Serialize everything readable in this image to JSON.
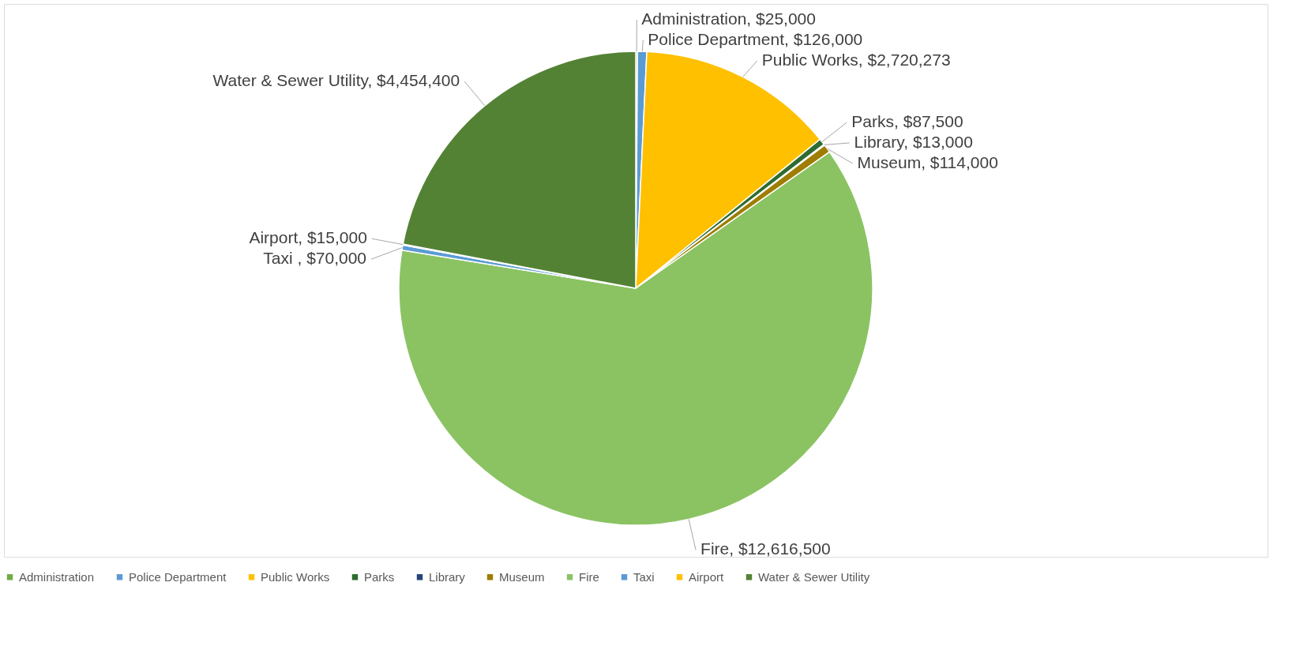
{
  "chart_data": {
    "type": "pie",
    "categories": [
      "Administration",
      "Police Department",
      "Public Works",
      "Parks",
      "Library",
      "Museum",
      "Fire",
      "Taxi",
      "Airport",
      "Water & Sewer Utility"
    ],
    "values": [
      25000,
      126000,
      2720273,
      87500,
      13000,
      114000,
      12616500,
      70000,
      15000,
      4454400
    ],
    "colors": [
      "#70ad47",
      "#5b9bd5",
      "#ffc000",
      "#2e6b30",
      "#264478",
      "#9e7d00",
      "#8bc363",
      "#5b9bd5",
      "#ffc000",
      "#548235"
    ],
    "value_labels": [
      "Administration, $25,000",
      "Police Department, $126,000",
      "Public Works, $2,720,273",
      "Parks, $87,500",
      "Library, $13,000",
      "Museum, $114,000",
      "Fire, $12,616,500",
      "Taxi , $70,000",
      "Airport, $15,000",
      "Water & Sewer Utility, $4,454,400"
    ],
    "legend": "bottom"
  }
}
